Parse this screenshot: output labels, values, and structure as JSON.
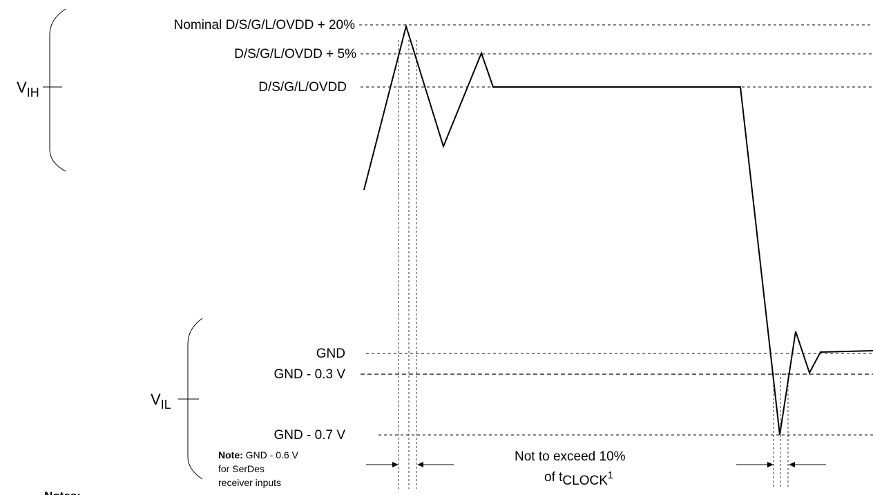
{
  "levels": {
    "nominal_plus_20": "Nominal D/S/G/L/OVDD + 20%",
    "plus_5": "D/S/G/L/OVDD + 5%",
    "nominal": "D/S/G/L/OVDD",
    "gnd": "GND",
    "gnd_minus_03": "GND - 0.3 V",
    "gnd_minus_07": "GND - 0.7 V"
  },
  "vih": {
    "main": "V",
    "sub": "IH"
  },
  "vil": {
    "main": "V",
    "sub": "IL"
  },
  "note": {
    "bold": "Note:",
    "line1": " GND - 0.6 V",
    "line2": "for SerDes",
    "line3": "receiver inputs"
  },
  "duration": {
    "line1": "Not to exceed 10%",
    "line2_prefix": "of t",
    "line2_sub": "CLOCK",
    "line2_sup": "1"
  },
  "footer": {
    "notes_heading": "Notes:"
  }
}
